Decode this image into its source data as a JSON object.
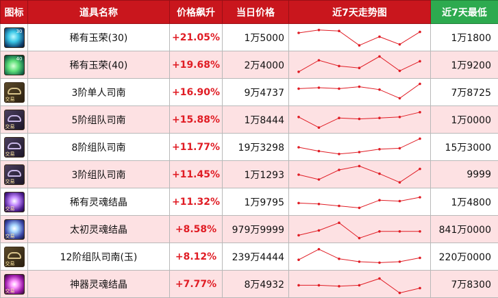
{
  "header": {
    "icon": "图标",
    "name": "道具名称",
    "change": "价格飙升",
    "price": "当日价格",
    "trend": "近7天走势图",
    "min": "近7天最低"
  },
  "colors": {
    "header_red": "#c9161d",
    "header_green": "#2daa4f",
    "row_alt": "#fde1e3",
    "change_text": "#e01c24",
    "trend_line": "#e01c24"
  },
  "rows": [
    {
      "icon": "crystal-icon",
      "icon_num": "30",
      "name": "稀有玉荣(30)",
      "change": "+21.05%",
      "price": "1万5000",
      "min": "1万1800",
      "trend": [
        0.75,
        0.9,
        0.85,
        0.1,
        0.55,
        0.15,
        0.8
      ]
    },
    {
      "icon": "crystal-icon",
      "icon_num": "40",
      "name": "稀有玉荣(40)",
      "change": "+19.68%",
      "price": "2万4000",
      "min": "1万9200",
      "trend": [
        0.15,
        0.75,
        0.45,
        0.35,
        0.95,
        0.2,
        0.7
      ]
    },
    {
      "icon": "gear-icon",
      "icon_tag": "交易",
      "name": "3阶单人司南",
      "change": "+16.90%",
      "price": "9万4737",
      "min": "7万8725",
      "trend": [
        0.7,
        0.75,
        0.7,
        0.8,
        0.65,
        0.2,
        0.95
      ]
    },
    {
      "icon": "gear-icon",
      "icon_tag": "交易",
      "name": "5阶组队司南",
      "change": "+15.88%",
      "price": "1万8444",
      "min": "1万0000",
      "trend": [
        0.65,
        0.1,
        0.6,
        0.55,
        0.6,
        0.65,
        0.9
      ]
    },
    {
      "icon": "gear-icon",
      "icon_tag": "交易",
      "name": "8阶组队司南",
      "change": "+11.77%",
      "price": "19万3298",
      "min": "15万3000",
      "trend": [
        0.5,
        0.3,
        0.15,
        0.25,
        0.4,
        0.45,
        0.95
      ]
    },
    {
      "icon": "gear-icon",
      "icon_tag": "交易",
      "name": "3阶组队司南",
      "change": "+11.45%",
      "price": "1万1293",
      "min": "9999",
      "trend": [
        0.5,
        0.25,
        0.75,
        0.95,
        0.55,
        0.1,
        0.8
      ]
    },
    {
      "icon": "soul-icon",
      "icon_tag": "交易",
      "name": "稀有灵魂结晶",
      "change": "+11.32%",
      "price": "1万9795",
      "min": "1万4800",
      "trend": [
        0.45,
        0.4,
        0.3,
        0.2,
        0.6,
        0.55,
        0.75
      ]
    },
    {
      "icon": "soul-icon",
      "icon_tag": "交易",
      "name": "太初灵魂结晶",
      "change": "+8.58%",
      "price": "979万9999",
      "min": "841万0000",
      "trend": [
        0.2,
        0.45,
        0.85,
        0.05,
        0.4,
        0.4,
        0.4
      ]
    },
    {
      "icon": "gear-icon",
      "icon_tag": "交易",
      "name": "12阶组队司南(玉)",
      "change": "+8.12%",
      "price": "239万4444",
      "min": "220万0000",
      "trend": [
        0.35,
        0.9,
        0.4,
        0.25,
        0.2,
        0.25,
        0.45
      ]
    },
    {
      "icon": "soul-icon",
      "icon_tag": "交易",
      "name": "神器灵魂结晶",
      "change": "+7.77%",
      "price": "8万4932",
      "min": "7万8300",
      "trend": [
        0.45,
        0.45,
        0.4,
        0.45,
        0.8,
        0.05,
        0.3
      ]
    }
  ]
}
